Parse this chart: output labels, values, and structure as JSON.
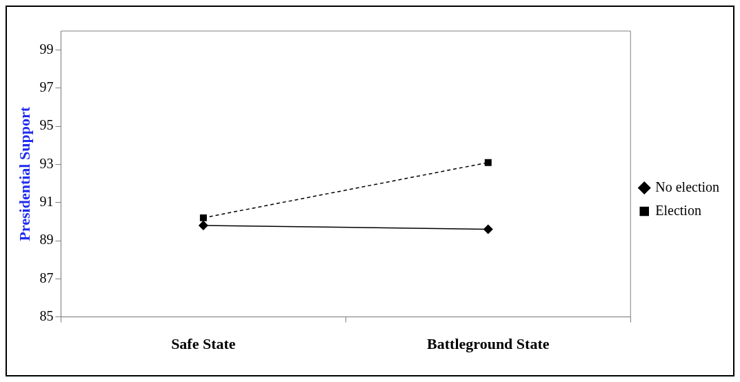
{
  "chart_data": {
    "type": "line",
    "ylabel": "Presidential Support",
    "categories": [
      "Safe State",
      "Battleground State"
    ],
    "series": [
      {
        "name": "No election",
        "color": "#000000",
        "values": [
          89.8,
          89.6
        ],
        "marker": "diamond",
        "line_style": "solid"
      },
      {
        "name": "Election",
        "color": "#000000",
        "values": [
          90.2,
          93.1
        ],
        "marker": "square",
        "line_style": "dashed"
      }
    ],
    "ylim": [
      85,
      100
    ],
    "yticks": [
      85,
      87,
      89,
      91,
      93,
      95,
      97,
      99
    ],
    "grid": false,
    "legend": "right"
  }
}
